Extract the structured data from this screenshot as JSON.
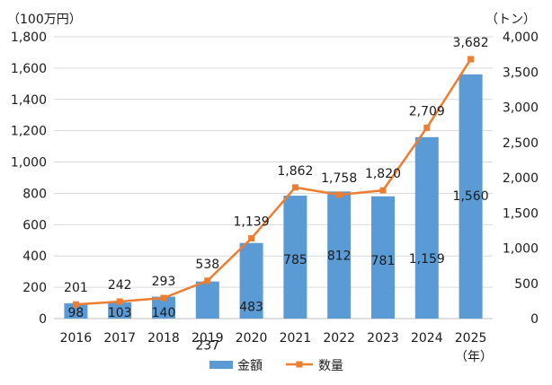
{
  "chart_data": {
    "type": "bar",
    "categories": [
      "2016",
      "2017",
      "2018",
      "2019",
      "2020",
      "2021",
      "2022",
      "2023",
      "2024",
      "2025"
    ],
    "x_unit": "（年）",
    "series": [
      {
        "name": "金額",
        "type": "bar",
        "axis": "left",
        "color": "#5b9bd5",
        "values": [
          98,
          103,
          140,
          237,
          483,
          785,
          812,
          781,
          1159,
          1560
        ]
      },
      {
        "name": "数量",
        "type": "line",
        "axis": "right",
        "color": "#ed7d31",
        "marker": "square",
        "values": [
          201,
          242,
          293,
          538,
          1139,
          1862,
          1758,
          1820,
          2709,
          3682
        ]
      }
    ],
    "y_left": {
      "unit": "（100万円）",
      "range": [
        0,
        1800
      ],
      "ticks": [
        0,
        200,
        400,
        600,
        800,
        1000,
        1200,
        1400,
        1600,
        1800
      ]
    },
    "y_right": {
      "unit": "（トン）",
      "range": [
        0,
        4000
      ],
      "ticks": [
        0,
        500,
        1000,
        1500,
        2000,
        2500,
        3000,
        3500,
        4000
      ]
    },
    "grid": true,
    "legend": "bottom"
  }
}
